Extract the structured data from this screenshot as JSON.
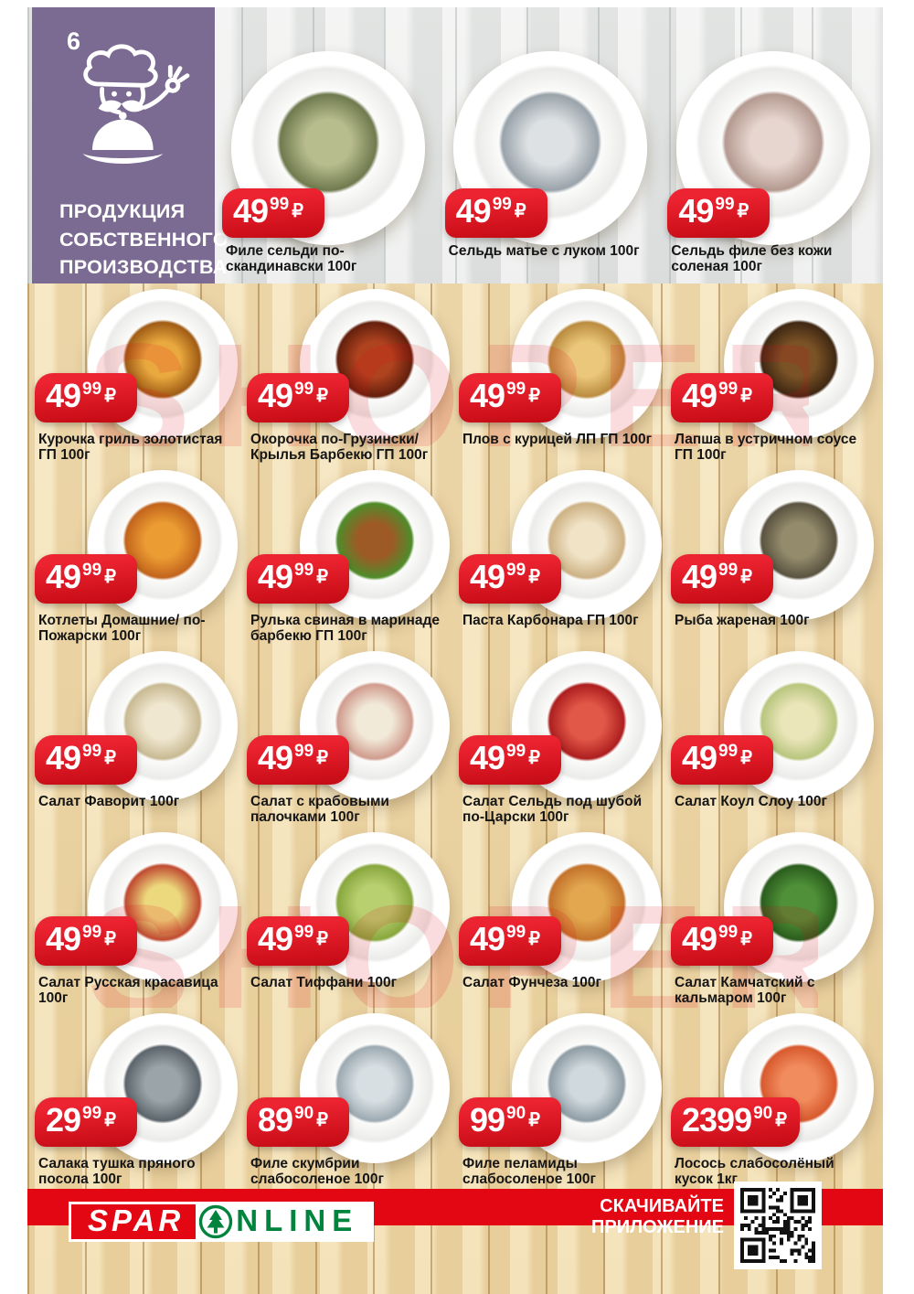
{
  "page": {
    "number": "6"
  },
  "panel": {
    "lines": [
      "ПРОДУКЦИЯ",
      "СОБСТВЕННОГО",
      "ПРОИЗВОДСТВА"
    ]
  },
  "currency": "₽",
  "watermark": "SHOPER",
  "colors": {
    "panel_purple": "#7b6b92",
    "tag_red": "#e30613",
    "spar_green": "#00843d"
  },
  "top_products": [
    {
      "name": "Филе сельди по-скандинавски 100г",
      "int": "49",
      "cents": "99",
      "c1": "#b8bd8e",
      "c2": "#6f7a4e"
    },
    {
      "name": "Сельдь матье с луком 100г",
      "int": "49",
      "cents": "99",
      "c1": "#dde1e3",
      "c2": "#99a3aa"
    },
    {
      "name": "Сельдь филе без кожи соленая 100г",
      "int": "49",
      "cents": "99",
      "c1": "#e7d6cf",
      "c2": "#b49a91"
    }
  ],
  "products": [
    {
      "name": "Курочка гриль золотистая ГП  100г",
      "int": "49",
      "cents": "99",
      "c1": "#eaa93f",
      "c2": "#a05c15"
    },
    {
      "name": "Окорочка по-Грузински/ Крылья Барбекю ГП 100г",
      "int": "49",
      "cents": "99",
      "c1": "#b0431f",
      "c2": "#64200d"
    },
    {
      "name": "Плов с курицей ЛП ГП 100г",
      "int": "49",
      "cents": "99",
      "c1": "#eac77b",
      "c2": "#bb8c3f"
    },
    {
      "name": "Лапша в устричном соусе ГП 100г",
      "int": "49",
      "cents": "99",
      "c1": "#7a5226",
      "c2": "#3f2813"
    },
    {
      "name": "Котлеты Домашние/ по-Пожарски 100г",
      "int": "49",
      "cents": "99",
      "c1": "#eb9c33",
      "c2": "#c2641c"
    },
    {
      "name": "Рулька свиная в маринаде барбекю ГП 100г",
      "int": "49",
      "cents": "99",
      "c1": "#9d5a26",
      "c2": "#4f8c2a"
    },
    {
      "name": "Паста Карбонара ГП 100г",
      "int": "49",
      "cents": "99",
      "c1": "#f0e3c6",
      "c2": "#cdb285"
    },
    {
      "name": "Рыба жареная 100г",
      "int": "49",
      "cents": "99",
      "c1": "#948b6c",
      "c2": "#5a5340"
    },
    {
      "name": "Салат Фаворит 100г",
      "int": "49",
      "cents": "99",
      "c1": "#f0e7d0",
      "c2": "#c8ba93"
    },
    {
      "name": "Салат с крабовыми палочками 100г",
      "int": "49",
      "cents": "99",
      "c1": "#f2ead9",
      "c2": "#d09c8e"
    },
    {
      "name": "Салат Сельдь под шубой по-Царски 100г",
      "int": "49",
      "cents": "99",
      "c1": "#e25848",
      "c2": "#ad1f1f"
    },
    {
      "name": "Салат Коул Слоу 100г",
      "int": "49",
      "cents": "99",
      "c1": "#ebe5ba",
      "c2": "#b8c67e"
    },
    {
      "name": "Салат Русская красавица 100г",
      "int": "49",
      "cents": "99",
      "c1": "#ecd97d",
      "c2": "#c04b31"
    },
    {
      "name": "Салат Тиффани 100г",
      "int": "49",
      "cents": "99",
      "c1": "#b9d070",
      "c2": "#88a73e"
    },
    {
      "name": "Салат Фунчеза 100г",
      "int": "49",
      "cents": "99",
      "c1": "#e2a74f",
      "c2": "#c4732b"
    },
    {
      "name": "Салат Камчатский с кальмаром 100г",
      "int": "49",
      "cents": "99",
      "c1": "#4f9038",
      "c2": "#2b5d1d"
    },
    {
      "name": "Салака тушка пряного посола 100г",
      "int": "29",
      "cents": "99",
      "c1": "#9ba4a9",
      "c2": "#5c656b"
    },
    {
      "name": "Филе скумбрии слабосоленое 100г",
      "int": "89",
      "cents": "90",
      "c1": "#d8dfe3",
      "c2": "#9daab2"
    },
    {
      "name": "Филе пеламиды слабосоленое 100г",
      "int": "99",
      "cents": "90",
      "c1": "#d0d9de",
      "c2": "#8f9da5"
    },
    {
      "name": "Лосось слабосолёный кусок 1кг",
      "int": "2399",
      "cents": "90",
      "c1": "#f18c5e",
      "c2": "#d85a2e"
    }
  ],
  "footer": {
    "spar": "SPAR",
    "online": "NLINE",
    "download": "СКАЧИВАЙТЕ ПРИЛОЖЕНИЕ"
  }
}
